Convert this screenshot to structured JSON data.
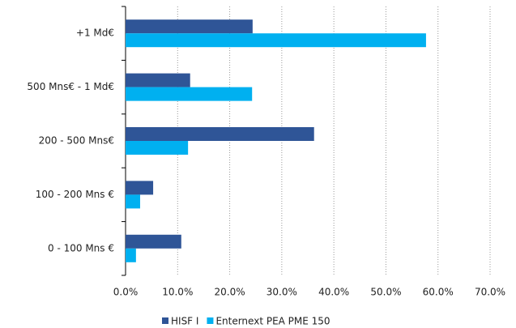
{
  "chart_data": {
    "type": "hbar",
    "categories": [
      "+1 Md€",
      "500 Mns€ - 1 Md€",
      "200 - 500 Mns€",
      "100 - 200 Mns €",
      "0 - 100 Mns €"
    ],
    "series": [
      {
        "name": "HISF I",
        "color": "#2f5597",
        "values": [
          24.4,
          12.4,
          36.2,
          5.3,
          10.7
        ]
      },
      {
        "name": "Enternext PEA PME 150",
        "color": "#00b0f0",
        "values": [
          57.7,
          24.3,
          12.0,
          2.8,
          2.0
        ]
      }
    ],
    "xlim": [
      0,
      70
    ],
    "xticks": [
      {
        "value": 0,
        "label": "0.0%"
      },
      {
        "value": 10,
        "label": "10.0%"
      },
      {
        "value": 20,
        "label": "20.0%"
      },
      {
        "value": 30,
        "label": "30.0%"
      },
      {
        "value": 40,
        "label": "40.0%"
      },
      {
        "value": 50,
        "label": "50.0%"
      },
      {
        "value": 60,
        "label": "60.0%"
      },
      {
        "value": 70,
        "label": "70.0%"
      }
    ],
    "grid": true,
    "legend": "bottom"
  }
}
